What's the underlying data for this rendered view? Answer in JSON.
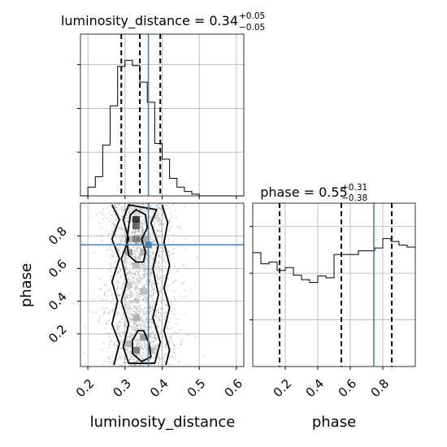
{
  "chart_data": {
    "type": "corner",
    "colors": {
      "truth": "#4682b4",
      "histogram": "#000000",
      "quantile": "#000000",
      "points": "#9a9a9a",
      "grid": "#b0b0b0"
    },
    "parameters": [
      {
        "name": "luminosity_distance",
        "xlabel": "luminosity_distance",
        "title_prefix": "luminosity_distance = 0.34",
        "title_plus": "+0.05",
        "title_minus": "−0.05",
        "range": [
          0.18,
          0.62
        ],
        "ticks": [
          0.2,
          0.3,
          0.4,
          0.5,
          0.6
        ],
        "tick_labels": [
          "0.2",
          "0.3",
          "0.4",
          "0.5",
          "0.6"
        ],
        "quantiles": [
          0.29,
          0.34,
          0.395
        ],
        "truth": 0.363,
        "hist_bin_edges": [
          0.18,
          0.2,
          0.22,
          0.24,
          0.26,
          0.28,
          0.3,
          0.32,
          0.34,
          0.36,
          0.38,
          0.4,
          0.42,
          0.44,
          0.46,
          0.48,
          0.5,
          0.52,
          0.54,
          0.56,
          0.58,
          0.6,
          0.62
        ],
        "hist_counts": [
          0,
          10,
          22,
          58,
          103,
          148,
          155,
          149,
          130,
          107,
          60,
          42,
          20,
          10,
          5,
          2,
          0,
          0,
          0,
          0,
          0,
          0
        ],
        "hist_ylim": [
          0,
          185
        ]
      },
      {
        "name": "phase",
        "xlabel": "phase",
        "ylabel": "phase",
        "title_prefix": "phase = 0.55",
        "title_plus": "+0.31",
        "title_minus": "−0.38",
        "range": [
          0.0,
          1.0
        ],
        "ticks": [
          0.2,
          0.4,
          0.6,
          0.8
        ],
        "tick_labels": [
          "0.2",
          "0.4",
          "0.6",
          "0.8"
        ],
        "quantiles": [
          0.165,
          0.545,
          0.855
        ],
        "truth": 0.745,
        "hist_bin_edges": [
          0.0,
          0.05,
          0.1,
          0.15,
          0.2,
          0.25,
          0.3,
          0.35,
          0.4,
          0.45,
          0.5,
          0.55,
          0.6,
          0.65,
          0.7,
          0.75,
          0.8,
          0.85,
          0.9,
          0.95,
          1.0
        ],
        "hist_counts": [
          122,
          110,
          112,
          103,
          106,
          98,
          93,
          90,
          97,
          95,
          120,
          120,
          120,
          124,
          124,
          127,
          137,
          134,
          130,
          128
        ],
        "hist_ylim": [
          0,
          175
        ]
      }
    ],
    "hist_y_ticks": [
      50,
      100,
      150
    ],
    "joint": {
      "x_param": "luminosity_distance",
      "y_param": "phase",
      "density_cells": [
        {
          "x": 0.33,
          "y": 0.9,
          "v": 0.95
        },
        {
          "x": 0.33,
          "y": 0.86,
          "v": 0.7
        },
        {
          "x": 0.33,
          "y": 0.78,
          "v": 0.6
        },
        {
          "x": 0.31,
          "y": 0.78,
          "v": 0.35
        },
        {
          "x": 0.35,
          "y": 0.78,
          "v": 0.4
        },
        {
          "x": 0.31,
          "y": 0.7,
          "v": 0.45
        },
        {
          "x": 0.35,
          "y": 0.7,
          "v": 0.35
        },
        {
          "x": 0.33,
          "y": 0.62,
          "v": 0.3
        },
        {
          "x": 0.31,
          "y": 0.5,
          "v": 0.25
        },
        {
          "x": 0.35,
          "y": 0.46,
          "v": 0.3
        },
        {
          "x": 0.33,
          "y": 0.3,
          "v": 0.35
        },
        {
          "x": 0.35,
          "y": 0.18,
          "v": 0.45
        },
        {
          "x": 0.33,
          "y": 0.1,
          "v": 0.6
        },
        {
          "x": 0.31,
          "y": 0.14,
          "v": 0.35
        },
        {
          "x": 0.37,
          "y": 0.1,
          "v": 0.3
        }
      ],
      "contours": [
        {
          "level": "inner",
          "points": [
            [
              0.33,
              0.96
            ],
            [
              0.355,
              0.93
            ],
            [
              0.36,
              0.85
            ],
            [
              0.345,
              0.78
            ],
            [
              0.355,
              0.7
            ],
            [
              0.35,
              0.64
            ],
            [
              0.33,
              0.64
            ],
            [
              0.31,
              0.68
            ],
            [
              0.305,
              0.76
            ],
            [
              0.31,
              0.86
            ],
            [
              0.315,
              0.93
            ]
          ]
        },
        {
          "level": "inner-bottom",
          "points": [
            [
              0.345,
              0.03
            ],
            [
              0.37,
              0.06
            ],
            [
              0.365,
              0.14
            ],
            [
              0.35,
              0.22
            ],
            [
              0.335,
              0.22
            ],
            [
              0.32,
              0.16
            ],
            [
              0.32,
              0.08
            ]
          ]
        },
        {
          "level": "middle",
          "points": [
            [
              0.31,
              0.99
            ],
            [
              0.385,
              0.96
            ],
            [
              0.37,
              0.88
            ],
            [
              0.39,
              0.74
            ],
            [
              0.375,
              0.6
            ],
            [
              0.39,
              0.44
            ],
            [
              0.375,
              0.3
            ],
            [
              0.395,
              0.15
            ],
            [
              0.38,
              0.02
            ],
            [
              0.31,
              0.02
            ],
            [
              0.295,
              0.12
            ],
            [
              0.31,
              0.26
            ],
            [
              0.29,
              0.4
            ],
            [
              0.305,
              0.52
            ],
            [
              0.29,
              0.66
            ],
            [
              0.31,
              0.78
            ],
            [
              0.295,
              0.9
            ]
          ]
        },
        {
          "level": "outer",
          "points": [
            [
              0.265,
              0.99
            ],
            [
              0.285,
              0.9
            ],
            [
              0.265,
              0.78
            ],
            [
              0.285,
              0.66
            ],
            [
              0.265,
              0.52
            ],
            [
              0.28,
              0.4
            ],
            [
              0.265,
              0.26
            ],
            [
              0.285,
              0.14
            ],
            [
              0.27,
              0.01
            ]
          ]
        },
        {
          "level": "outer-right",
          "points": [
            [
              0.4,
              0.99
            ],
            [
              0.415,
              0.88
            ],
            [
              0.405,
              0.76
            ],
            [
              0.42,
              0.62
            ],
            [
              0.405,
              0.48
            ],
            [
              0.42,
              0.36
            ],
            [
              0.405,
              0.22
            ],
            [
              0.42,
              0.1
            ],
            [
              0.41,
              0.01
            ]
          ]
        }
      ]
    }
  }
}
